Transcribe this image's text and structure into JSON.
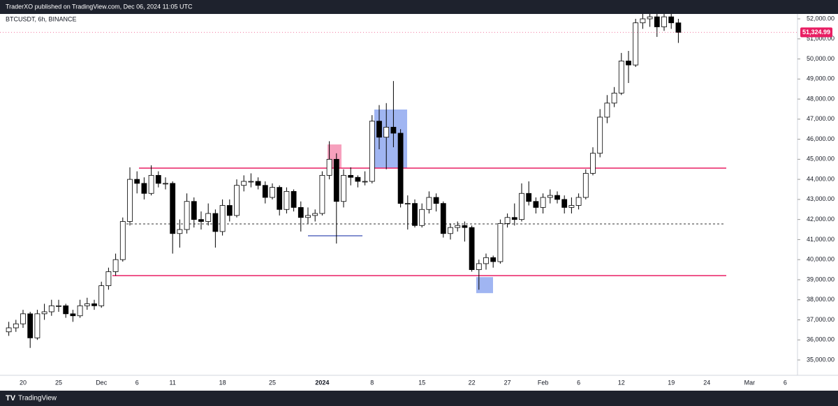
{
  "header": "TraderXO published on TradingView.com, Dec 06, 2024 11:05 UTC",
  "footer": "TradingView",
  "chart_data": {
    "type": "candlestick",
    "title": "BTCUSDT, 6h, BINANCE",
    "categories": [
      null,
      null,
      "20",
      null,
      null,
      null,
      null,
      "25",
      null,
      null,
      null,
      null,
      null,
      "Dec",
      null,
      null,
      null,
      null,
      "6",
      null,
      null,
      null,
      null,
      "11",
      null,
      null,
      null,
      null,
      null,
      null,
      "18",
      null,
      null,
      null,
      null,
      null,
      null,
      "25",
      null,
      null,
      null,
      null,
      null,
      null,
      "2024",
      null,
      null,
      null,
      null,
      null,
      null,
      "8",
      null,
      null,
      null,
      null,
      null,
      null,
      "15",
      null,
      null,
      null,
      null,
      null,
      null,
      "22",
      null,
      null,
      null,
      null,
      "27",
      null,
      null,
      null,
      null,
      "Feb",
      null,
      null,
      null,
      null,
      "6",
      null,
      null,
      null,
      null,
      null,
      "12",
      null,
      null,
      null,
      null,
      null,
      null,
      "19",
      null,
      null,
      null,
      null,
      "24",
      null,
      null,
      null,
      null,
      null,
      "Mar",
      null,
      null,
      null,
      null,
      "6",
      null
    ],
    "ohlc": [
      [
        36400,
        36900,
        36200,
        36600
      ],
      [
        36600,
        37000,
        36400,
        36800
      ],
      [
        36800,
        37500,
        36600,
        37300
      ],
      [
        37300,
        37400,
        35600,
        36100
      ],
      [
        36100,
        37500,
        36000,
        37300
      ],
      [
        37300,
        37800,
        37000,
        37400
      ],
      [
        37400,
        38000,
        37200,
        37700
      ],
      [
        37700,
        38000,
        37400,
        37700
      ],
      [
        37700,
        37800,
        37100,
        37300
      ],
      [
        37300,
        37500,
        36900,
        37200
      ],
      [
        37200,
        38000,
        37100,
        37700
      ],
      [
        37700,
        38100,
        37500,
        37800
      ],
      [
        37800,
        38000,
        37500,
        37700
      ],
      [
        37700,
        38900,
        37600,
        38700
      ],
      [
        38700,
        39600,
        38500,
        39400
      ],
      [
        39400,
        40300,
        39200,
        40000
      ],
      [
        40000,
        42100,
        39900,
        41900
      ],
      [
        41900,
        44600,
        41700,
        44000
      ],
      [
        44000,
        44400,
        43300,
        43800
      ],
      [
        43800,
        44100,
        43000,
        43300
      ],
      [
        43300,
        44700,
        43200,
        44200
      ],
      [
        44200,
        44400,
        43600,
        43800
      ],
      [
        43800,
        44100,
        43500,
        43800
      ],
      [
        43800,
        43900,
        40300,
        41300
      ],
      [
        41300,
        42000,
        40600,
        41500
      ],
      [
        41500,
        43300,
        41300,
        42900
      ],
      [
        42900,
        43100,
        41600,
        42000
      ],
      [
        42000,
        42400,
        41500,
        41900
      ],
      [
        41900,
        42800,
        41700,
        42300
      ],
      [
        42300,
        42500,
        40600,
        41400
      ],
      [
        41400,
        43000,
        41200,
        42700
      ],
      [
        42700,
        43000,
        41900,
        42200
      ],
      [
        42200,
        44000,
        42100,
        43700
      ],
      [
        43700,
        44200,
        43400,
        43900
      ],
      [
        43900,
        44300,
        43600,
        43900
      ],
      [
        43900,
        44100,
        43500,
        43700
      ],
      [
        43700,
        43900,
        42800,
        43100
      ],
      [
        43100,
        43800,
        43000,
        43600
      ],
      [
        43600,
        43700,
        42200,
        42500
      ],
      [
        42500,
        43600,
        42300,
        43400
      ],
      [
        43400,
        43500,
        42400,
        42600
      ],
      [
        42600,
        42900,
        41400,
        42100
      ],
      [
        42100,
        42600,
        41800,
        42200
      ],
      [
        42200,
        42500,
        41900,
        42300
      ],
      [
        42300,
        44400,
        42200,
        44200
      ],
      [
        44200,
        45900,
        44000,
        45000
      ],
      [
        45000,
        45300,
        40800,
        42900
      ],
      [
        42900,
        44500,
        42600,
        44200
      ],
      [
        44200,
        44600,
        43700,
        44100
      ],
      [
        44100,
        44200,
        43600,
        43900
      ],
      [
        43900,
        44400,
        43700,
        43900
      ],
      [
        43900,
        47200,
        43800,
        46900
      ],
      [
        46900,
        47700,
        45500,
        46100
      ],
      [
        46100,
        47800,
        44500,
        46600
      ],
      [
        46600,
        48900,
        45600,
        46300
      ],
      [
        46300,
        46500,
        42600,
        42800
      ],
      [
        42800,
        43200,
        41500,
        42800
      ],
      [
        42800,
        43000,
        41600,
        41700
      ],
      [
        41700,
        42800,
        41600,
        42500
      ],
      [
        42500,
        43400,
        42300,
        43100
      ],
      [
        43100,
        43300,
        42400,
        42800
      ],
      [
        42800,
        42900,
        41100,
        41300
      ],
      [
        41300,
        41800,
        41000,
        41600
      ],
      [
        41600,
        41900,
        41400,
        41700
      ],
      [
        41700,
        41900,
        40900,
        41600
      ],
      [
        41600,
        41700,
        39400,
        39500
      ],
      [
        39500,
        40000,
        38500,
        39800
      ],
      [
        39800,
        40300,
        39500,
        40100
      ],
      [
        40100,
        40200,
        39600,
        39900
      ],
      [
        39900,
        42000,
        39800,
        41800
      ],
      [
        41800,
        42300,
        41600,
        42100
      ],
      [
        42100,
        42800,
        41700,
        42000
      ],
      [
        42000,
        43800,
        41900,
        43300
      ],
      [
        43300,
        43900,
        42700,
        42900
      ],
      [
        42900,
        43100,
        42300,
        42600
      ],
      [
        42600,
        43300,
        42300,
        43100
      ],
      [
        43100,
        43500,
        42800,
        43200
      ],
      [
        43200,
        43400,
        42800,
        43000
      ],
      [
        43000,
        43200,
        42300,
        42600
      ],
      [
        42600,
        43100,
        42300,
        42700
      ],
      [
        42700,
        43300,
        42500,
        43100
      ],
      [
        43100,
        44500,
        43000,
        44300
      ],
      [
        44300,
        45600,
        44200,
        45300
      ],
      [
        45300,
        47500,
        45100,
        47100
      ],
      [
        47100,
        48200,
        46800,
        47800
      ],
      [
        47800,
        48600,
        47600,
        48300
      ],
      [
        48300,
        50300,
        48200,
        49900
      ],
      [
        49900,
        50400,
        48800,
        49700
      ],
      [
        49700,
        52000,
        49600,
        51800
      ],
      [
        51800,
        52600,
        51500,
        52000
      ],
      [
        52000,
        52800,
        51600,
        52100
      ],
      [
        52100,
        52300,
        51100,
        51600
      ],
      [
        51600,
        52500,
        51400,
        52100
      ],
      [
        52100,
        52800,
        51500,
        51800
      ],
      [
        51800,
        52000,
        50800,
        51324.99
      ],
      null,
      null,
      null,
      null,
      null,
      null,
      null,
      null,
      null,
      null,
      null,
      null,
      null,
      null,
      null,
      null
    ],
    "up_color": "#ffffff",
    "down_color": "#000000",
    "wick_color": "#000000",
    "ylim": [
      34235,
      52243
    ],
    "yticks": [
      {
        "value": 35000,
        "label": "35,000.00"
      },
      {
        "value": 36000,
        "label": "36,000.00"
      },
      {
        "value": 37000,
        "label": "37,000.00"
      },
      {
        "value": 38000,
        "label": "38,000.00"
      },
      {
        "value": 39000,
        "label": "39,000.00"
      },
      {
        "value": 40000,
        "label": "40,000.00"
      },
      {
        "value": 41000,
        "label": "41,000.00"
      },
      {
        "value": 42000,
        "label": "42,000.00"
      },
      {
        "value": 43000,
        "label": "43,000.00"
      },
      {
        "value": 44000,
        "label": "44,000.00"
      },
      {
        "value": 45000,
        "label": "45,000.00"
      },
      {
        "value": 46000,
        "label": "46,000.00"
      },
      {
        "value": 47000,
        "label": "47,000.00"
      },
      {
        "value": 48000,
        "label": "48,000.00"
      },
      {
        "value": 49000,
        "label": "49,000.00"
      },
      {
        "value": 50000,
        "label": "50,000.00"
      },
      {
        "value": 51000,
        "label": "51,000.00"
      },
      {
        "value": 52000,
        "label": "52,000.00"
      }
    ],
    "last_price": {
      "value": 51324.99,
      "label": "51,324.99",
      "color": "#e91e63"
    },
    "levels": [
      {
        "value": 44560,
        "color": "#e91e63",
        "style": "solid"
      },
      {
        "value": 39200,
        "color": "#e91e63",
        "style": "solid"
      },
      {
        "value": 41780,
        "color": "#333333",
        "style": "dashed"
      },
      {
        "value": 41190,
        "color": "#5c6bc0",
        "style": "solid"
      }
    ],
    "zones": [
      {
        "top": 45740,
        "bottom": 44560,
        "color": "#f48fb1"
      },
      {
        "top": 47480,
        "bottom": 44560,
        "color": "#8fa8f0"
      },
      {
        "top": 39130,
        "bottom": 38330,
        "color": "#8fa8f0"
      }
    ]
  }
}
